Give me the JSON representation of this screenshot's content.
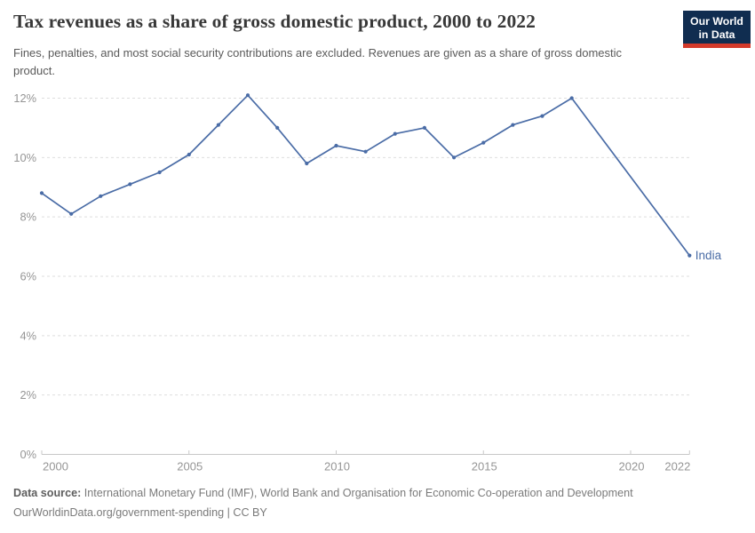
{
  "header": {
    "title": "Tax revenues as a share of gross domestic product, 2000 to 2022",
    "subtitle": "Fines, penalties, and most social security contributions are excluded. Revenues are given as a share of gross domestic product.",
    "logo": {
      "line1": "Our World",
      "line2": "in Data",
      "bg": "#102d50",
      "accent": "#d33a2b"
    }
  },
  "chart_data": {
    "type": "line",
    "title": "Tax revenues as a share of gross domestic product, 2000 to 2022",
    "subtitle": "Fines, penalties, and most social security contributions are excluded. Revenues are given as a share of gross domestic product.",
    "unit": "%",
    "x": [
      2000,
      2001,
      2002,
      2003,
      2004,
      2005,
      2006,
      2007,
      2008,
      2009,
      2010,
      2011,
      2012,
      2013,
      2014,
      2015,
      2016,
      2017,
      2018,
      2022
    ],
    "series": [
      {
        "name": "India",
        "color": "#4a6ca6",
        "values": [
          8.8,
          8.1,
          8.7,
          9.1,
          9.5,
          10.1,
          11.1,
          12.1,
          11.0,
          9.8,
          10.4,
          10.2,
          10.8,
          11.0,
          10.0,
          10.5,
          11.1,
          11.4,
          12.0,
          6.7
        ]
      }
    ],
    "xlim": [
      2000,
      2022
    ],
    "ylim": [
      0,
      12
    ],
    "xticks": [
      2000,
      2005,
      2010,
      2015,
      2020,
      2022
    ],
    "yticks": [
      0,
      2,
      4,
      6,
      8,
      10,
      12
    ],
    "ytick_suffix": "%",
    "grid": "horizontal-dashed",
    "legend_position": "end-of-line-label",
    "axis_color": "#c8c8c8",
    "grid_color": "#dedede",
    "tick_label_color": "#959595"
  },
  "footer": {
    "source_label": "Data source:",
    "source_text": " International Monetary Fund (IMF), World Bank and Organisation for Economic Co-operation and Development",
    "license_line": "OurWorldinData.org/government-spending | CC BY"
  }
}
